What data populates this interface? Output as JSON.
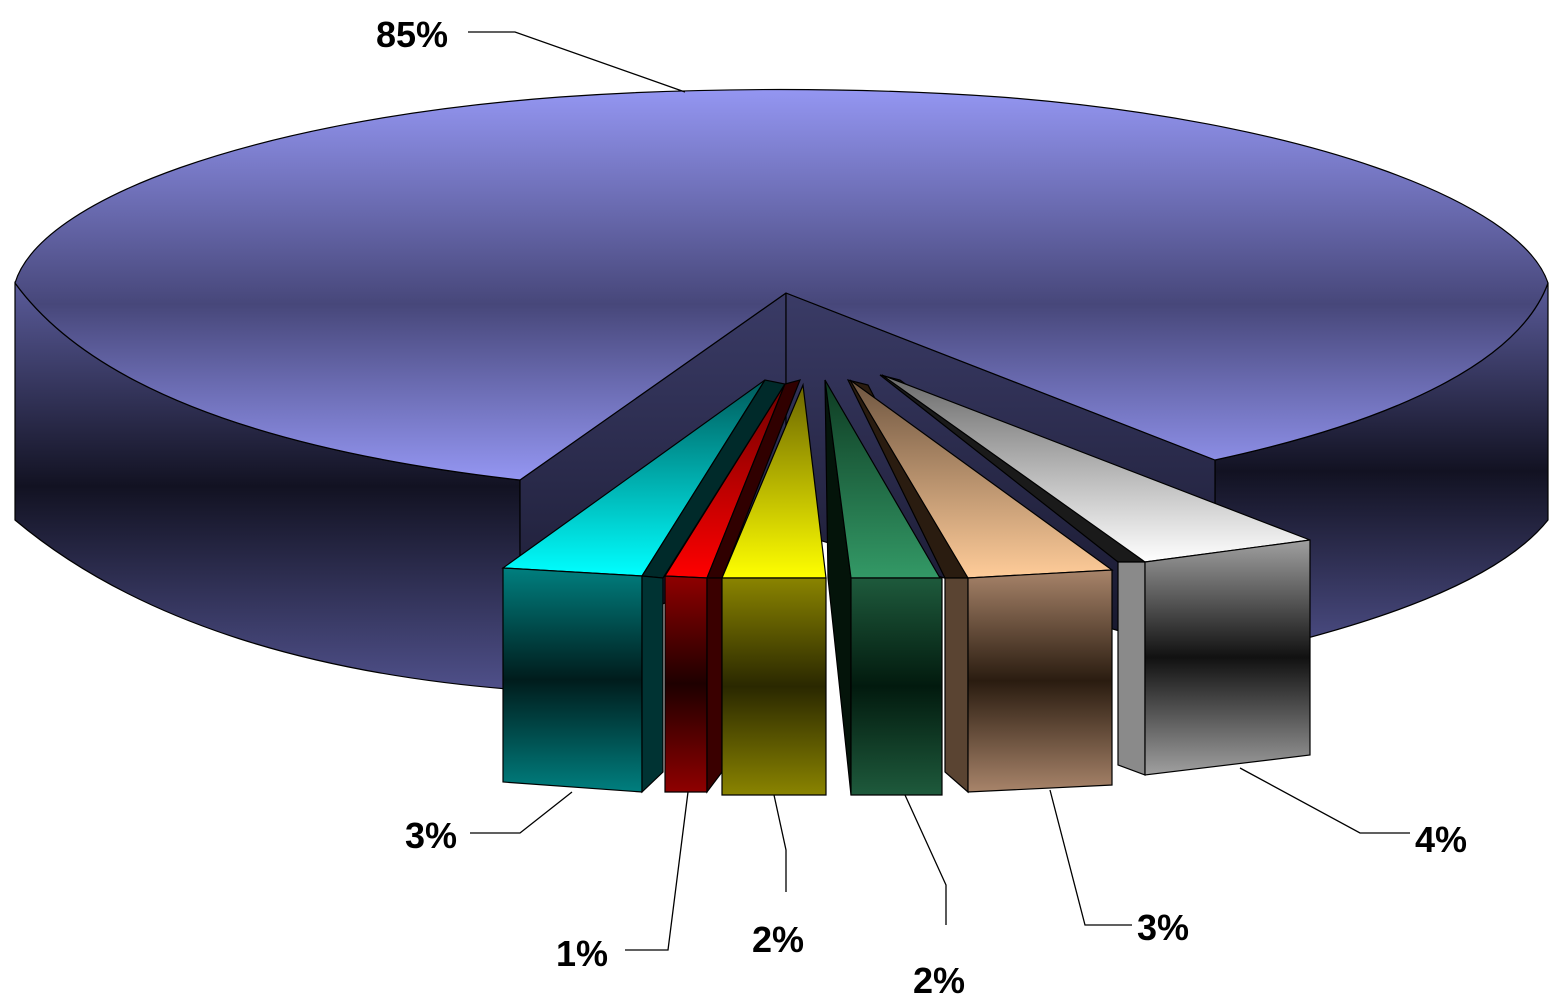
{
  "chart_data": {
    "type": "pie",
    "variant": "3d-exploded",
    "legend": "none",
    "values": [
      85,
      3,
      1,
      2,
      2,
      3,
      4
    ],
    "data_labels": [
      "85%",
      "3%",
      "1%",
      "2%",
      "2%",
      "3%",
      "4%"
    ],
    "colors": [
      "#9496f2",
      "#33cccc",
      "#ff0000",
      "#ffff00",
      "#339966",
      "#ffcc99",
      "#ffffff"
    ]
  }
}
